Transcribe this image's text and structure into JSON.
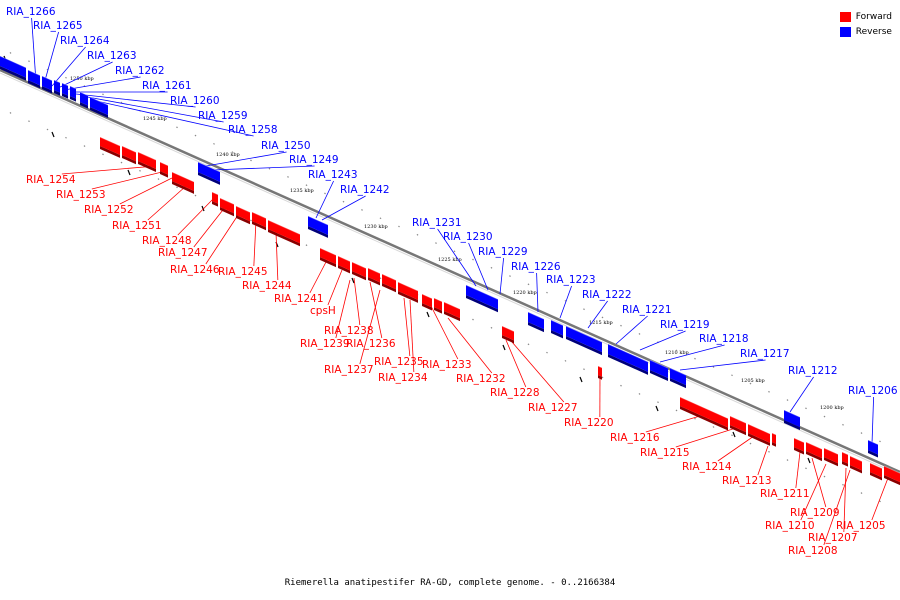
{
  "caption": "Riemerella anatipestifer RA-GD, complete genome. - 0..2166384",
  "legend": [
    {
      "label": "Forward",
      "color": "#ff0000"
    },
    {
      "label": "Reverse",
      "color": "#0000ff"
    }
  ],
  "colors": {
    "forward": "#ff0000",
    "reverse": "#0000ff",
    "backbone": "#777777"
  },
  "ticks": [
    "1250 kbp",
    "1245 kbp",
    "1240 kbp",
    "1235 kbp",
    "1230 kbp",
    "1225 kbp",
    "1220 kbp",
    "1215 kbp",
    "1210 kbp",
    "1205 kbp",
    "1200 kbp"
  ],
  "reverse_labels": [
    "RIA_1266",
    "RIA_1265",
    "RIA_1264",
    "RIA_1263",
    "RIA_1262",
    "RIA_1261",
    "RIA_1260",
    "RIA_1259",
    "RIA_1258",
    "RIA_1250",
    "RIA_1249",
    "RIA_1243",
    "RIA_1242",
    "RIA_1231",
    "RIA_1230",
    "RIA_1229",
    "RIA_1226",
    "RIA_1223",
    "RIA_1222",
    "RIA_1221",
    "RIA_1219",
    "RIA_1218",
    "RIA_1217",
    "RIA_1212",
    "RIA_1206"
  ],
  "forward_labels": [
    "RIA_1254",
    "RIA_1253",
    "RIA_1252",
    "RIA_1251",
    "RIA_1248",
    "RIA_1247",
    "RIA_1246",
    "RIA_1245",
    "RIA_1244",
    "RIA_1241",
    "cpsH",
    "RIA_1238",
    "RIA_1239",
    "RIA_1236",
    "RIA_1237",
    "RIA_1235",
    "RIA_1234",
    "RIA_1233",
    "RIA_1232",
    "RIA_1228",
    "RIA_1227",
    "RIA_1220",
    "RIA_1216",
    "RIA_1215",
    "RIA_1214",
    "RIA_1213",
    "RIA_1211",
    "RIA_1209",
    "RIA_1210",
    "RIA_1207",
    "RIA_1208",
    "RIA_1205"
  ]
}
